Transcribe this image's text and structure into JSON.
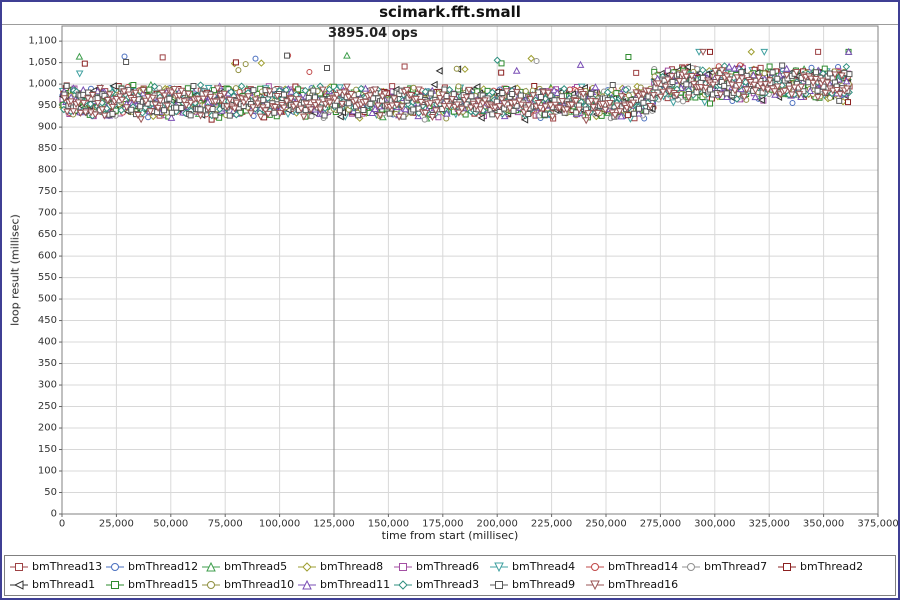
{
  "chart_data": {
    "type": "scatter",
    "title": "scimark.fft.small",
    "annotation": {
      "text": "3895.04 ops",
      "x": 125000
    },
    "xlabel": "time from start (millisec)",
    "ylabel": "loop result (millisec)",
    "xlim": [
      0,
      375000
    ],
    "ylim": [
      0,
      1100
    ],
    "x_tick_step": 25000,
    "y_tick_step": 50,
    "x_tick_labels": [
      "0",
      "25,000",
      "50,000",
      "75,000",
      "100,000",
      "125,000",
      "150,000",
      "175,000",
      "200,000",
      "225,000",
      "250,000",
      "275,000",
      "300,000",
      "325,000",
      "350,000",
      "375,000"
    ],
    "y_tick_labels": [
      "0",
      "50",
      "100",
      "150",
      "200",
      "250",
      "300",
      "350",
      "400",
      "450",
      "500",
      "550",
      "600",
      "650",
      "700",
      "750",
      "800",
      "850",
      "900",
      "950",
      "1,000",
      "1,050",
      "1,100"
    ],
    "grid": true,
    "legend_position": "bottom",
    "colors": {
      "frame_border": "#3f3f94",
      "plot_border": "#808080",
      "grid": "#d8d8d8",
      "tick_text": "#333333",
      "annotation_line": "#8a8a8a",
      "marker_fill": "#ffffff"
    },
    "series": [
      {
        "name": "bmThread13",
        "color": "#9e4244",
        "shape": "square"
      },
      {
        "name": "bmThread12",
        "color": "#4a6fbf",
        "shape": "circle"
      },
      {
        "name": "bmThread5",
        "color": "#3f9e4d",
        "shape": "triangle-up"
      },
      {
        "name": "bmThread8",
        "color": "#9e9e30",
        "shape": "diamond"
      },
      {
        "name": "bmThread6",
        "color": "#a34fa3",
        "shape": "square"
      },
      {
        "name": "bmThread4",
        "color": "#3fa0a0",
        "shape": "triangle-down"
      },
      {
        "name": "bmThread14",
        "color": "#c04848",
        "shape": "circle"
      },
      {
        "name": "bmThread7",
        "color": "#909090",
        "shape": "circle"
      },
      {
        "name": "bmThread2",
        "color": "#8b2020",
        "shape": "square"
      },
      {
        "name": "bmThread1",
        "color": "#303030",
        "shape": "triangle-left"
      },
      {
        "name": "bmThread15",
        "color": "#2e8b2e",
        "shape": "square"
      },
      {
        "name": "bmThread10",
        "color": "#8f8f3f",
        "shape": "circle"
      },
      {
        "name": "bmThread11",
        "color": "#7a4fb5",
        "shape": "triangle-up"
      },
      {
        "name": "bmThread3",
        "color": "#2f8f7f",
        "shape": "diamond"
      },
      {
        "name": "bmThread9",
        "color": "#585858",
        "shape": "square"
      },
      {
        "name": "bmThread16",
        "color": "#9a5656",
        "shape": "triangle-down"
      }
    ],
    "scatter_summary": {
      "note": "dense benchmark scatter, ~16 threads sampling continuously; values estimated from plot",
      "x_start": 0,
      "x_end": 362000,
      "points_per_series_interval_ms": 1100,
      "segments": [
        {
          "x_from": 0,
          "x_to": 272000,
          "y_center": 958,
          "y_spread": 45
        },
        {
          "x_from": 272000,
          "x_to": 362000,
          "y_center": 1002,
          "y_spread": 50
        }
      ],
      "outlier_max": 1075
    }
  }
}
